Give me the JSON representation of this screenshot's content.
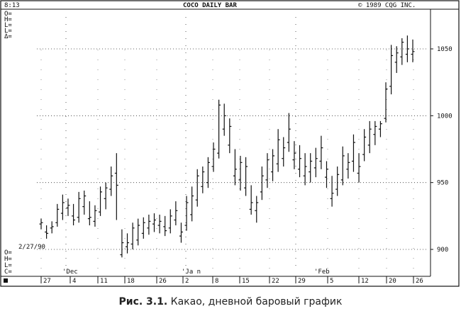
{
  "chart_data": {
    "type": "bar",
    "style": "ohlc",
    "header": {
      "time": "8:13",
      "title": "COCO DAILY BAR",
      "copyright": "©  1989 CQG INC."
    },
    "top_left_readouts": [
      "O=",
      "H=",
      "L=",
      "L=",
      "Δ="
    ],
    "bottom_left_readouts": [
      "O=",
      "H=",
      "L=",
      "C="
    ],
    "date_label": "2/27/90",
    "ylim": [
      888,
      1075
    ],
    "y_ticks": [
      900,
      950,
      1000,
      1050
    ],
    "month_labels": [
      "'Dec",
      "'Ja n",
      "'Feb"
    ],
    "x_tick_labels": [
      "27",
      "4",
      "11",
      "18",
      "26",
      "2",
      "8",
      "15",
      "22",
      "29",
      "5",
      "12",
      "20",
      "26"
    ],
    "grid": "dotted",
    "bars": [
      [
        919,
        923,
        915,
        920
      ],
      [
        913,
        918,
        908,
        912
      ],
      [
        916,
        921,
        912,
        917
      ],
      [
        920,
        934,
        917,
        930
      ],
      [
        927,
        941,
        922,
        935
      ],
      [
        931,
        938,
        925,
        933
      ],
      [
        925,
        934,
        918,
        922
      ],
      [
        924,
        943,
        920,
        938
      ],
      [
        932,
        944,
        926,
        940
      ],
      [
        923,
        936,
        918,
        924
      ],
      [
        921,
        933,
        917,
        929
      ],
      [
        928,
        947,
        925,
        943
      ],
      [
        938,
        950,
        930,
        946
      ],
      [
        945,
        962,
        940,
        955
      ],
      [
        957,
        972,
        922,
        948
      ],
      [
        896,
        915,
        894,
        905
      ],
      [
        902,
        912,
        897,
        905
      ],
      [
        904,
        920,
        900,
        916
      ],
      [
        907,
        923,
        903,
        918
      ],
      [
        912,
        924,
        908,
        920
      ],
      [
        916,
        926,
        911,
        921
      ],
      [
        919,
        927,
        913,
        922
      ],
      [
        918,
        926,
        912,
        921
      ],
      [
        917,
        925,
        910,
        914
      ],
      [
        916,
        930,
        912,
        925
      ],
      [
        922,
        936,
        918,
        929
      ],
      [
        910,
        920,
        905,
        913
      ],
      [
        918,
        940,
        914,
        935
      ],
      [
        926,
        947,
        921,
        940
      ],
      [
        937,
        960,
        932,
        955
      ],
      [
        947,
        962,
        942,
        958
      ],
      [
        950,
        969,
        946,
        965
      ],
      [
        962,
        980,
        958,
        975
      ],
      [
        972,
        1012,
        968,
        1008
      ],
      [
        990,
        1009,
        985,
        1000
      ],
      [
        978,
        998,
        972,
        992
      ],
      [
        955,
        975,
        948,
        960
      ],
      [
        952,
        970,
        944,
        965
      ],
      [
        946,
        969,
        940,
        962
      ],
      [
        930,
        948,
        926,
        935
      ],
      [
        929,
        940,
        920,
        935
      ],
      [
        943,
        962,
        937,
        955
      ],
      [
        952,
        972,
        946,
        967
      ],
      [
        958,
        975,
        951,
        970
      ],
      [
        964,
        990,
        958,
        982
      ],
      [
        968,
        984,
        962,
        976
      ],
      [
        980,
        1002,
        973,
        990
      ],
      [
        967,
        981,
        960,
        972
      ],
      [
        960,
        978,
        954,
        968
      ],
      [
        955,
        972,
        948,
        962
      ],
      [
        958,
        972,
        950,
        966
      ],
      [
        961,
        976,
        954,
        968
      ],
      [
        966,
        985,
        960,
        976
      ],
      [
        954,
        966,
        946,
        960
      ],
      [
        938,
        955,
        932,
        942
      ],
      [
        945,
        962,
        940,
        956
      ],
      [
        952,
        977,
        948,
        970
      ],
      [
        960,
        972,
        953,
        965
      ],
      [
        966,
        986,
        958,
        980
      ],
      [
        957,
        972,
        950,
        962
      ],
      [
        971,
        990,
        966,
        984
      ],
      [
        978,
        996,
        972,
        990
      ],
      [
        986,
        996,
        978,
        992
      ],
      [
        990,
        996,
        984,
        994
      ],
      [
        998,
        1025,
        995,
        1020
      ],
      [
        1022,
        1053,
        1016,
        1045
      ],
      [
        1040,
        1052,
        1032,
        1047
      ],
      [
        1044,
        1058,
        1038,
        1055
      ],
      [
        1046,
        1060,
        1040,
        1050
      ],
      [
        1046,
        1057,
        1040,
        1048
      ]
    ]
  },
  "caption": {
    "label": "Рис. 3.1.",
    "text": " Какао, дневной баровый график"
  }
}
